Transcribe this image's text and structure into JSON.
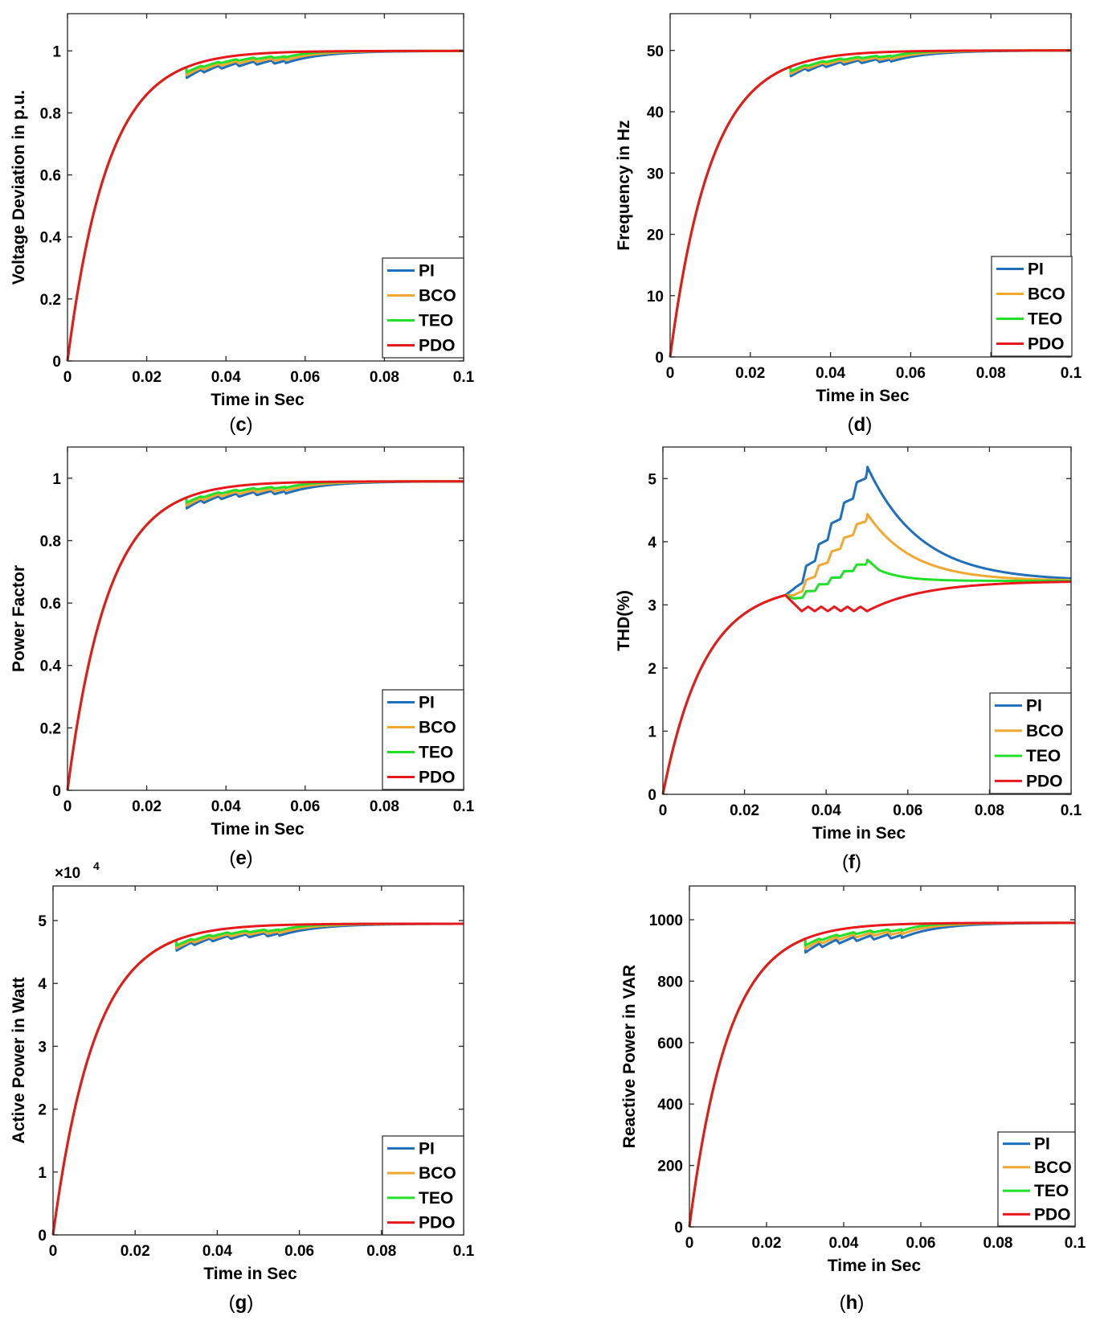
{
  "chart_data": [
    {
      "id": "c",
      "type": "line",
      "caption": "c",
      "xlabel": "Time in Sec",
      "ylabel": "Voltage Deviation in p.u.",
      "xlim": [
        0,
        0.1
      ],
      "ylim": [
        0,
        1.12
      ],
      "xticks": [
        "0",
        "0.02",
        "0.04",
        "0.06",
        "0.08",
        "0.1"
      ],
      "yticks": [
        "0",
        "0.2",
        "0.4",
        "0.6",
        "0.8",
        "1"
      ],
      "ytick_values": [
        0,
        0.2,
        0.4,
        0.6,
        0.8,
        1
      ],
      "legend_position": "bottom-right",
      "legend": [
        "PI",
        "BCO",
        "TEO",
        "PDO"
      ],
      "series_colors": [
        "#1f6fba",
        "#f0a830",
        "#22e02a",
        "#e8181c"
      ],
      "model": {
        "kind": "rise",
        "final": 1.0,
        "tau": 0.0102,
        "disturbance": {
          "start": 0.03,
          "end": 0.055,
          "depth": [
            0.035,
            0.026,
            0.017,
            0.0
          ],
          "ripple": 0.3,
          "settle_tau": [
            0.009,
            0.007,
            0.005,
            0.0
          ]
        }
      }
    },
    {
      "id": "d",
      "type": "line",
      "caption": "d",
      "xlabel": "Time in Sec",
      "ylabel": "Frequency in Hz",
      "xlim": [
        0,
        0.1
      ],
      "ylim": [
        0,
        56
      ],
      "xticks": [
        "0",
        "0.02",
        "0.04",
        "0.06",
        "0.08",
        "0.1"
      ],
      "yticks": [
        "0",
        "10",
        "20",
        "30",
        "40",
        "50"
      ],
      "ytick_values": [
        0,
        10,
        20,
        30,
        40,
        50
      ],
      "legend_position": "bottom-right",
      "legend": [
        "PI",
        "BCO",
        "TEO",
        "PDO"
      ],
      "series_colors": [
        "#1f6fba",
        "#f0a830",
        "#22e02a",
        "#e8181c"
      ],
      "model": {
        "kind": "rise",
        "final": 50,
        "tau": 0.0102,
        "disturbance": {
          "start": 0.03,
          "end": 0.055,
          "depth": [
            1.6,
            1.2,
            0.8,
            0.0
          ],
          "ripple": 0.3,
          "settle_tau": [
            0.009,
            0.007,
            0.005,
            0.0
          ]
        }
      }
    },
    {
      "id": "e",
      "type": "line",
      "caption": "e",
      "xlabel": "Time in Sec",
      "ylabel": "Power Factor",
      "xlim": [
        0,
        0.1
      ],
      "ylim": [
        0,
        1.1
      ],
      "xticks": [
        "0",
        "0.02",
        "0.04",
        "0.06",
        "0.08",
        "0.1"
      ],
      "yticks": [
        "0",
        "0.2",
        "0.4",
        "0.6",
        "0.8",
        "1"
      ],
      "ytick_values": [
        0,
        0.2,
        0.4,
        0.6,
        0.8,
        1
      ],
      "legend_position": "bottom-right",
      "legend": [
        "PI",
        "BCO",
        "TEO",
        "PDO"
      ],
      "series_colors": [
        "#1f6fba",
        "#f0a830",
        "#22e02a",
        "#e8181c"
      ],
      "model": {
        "kind": "rise",
        "final": 0.99,
        "tau": 0.0102,
        "disturbance": {
          "start": 0.03,
          "end": 0.055,
          "depth": [
            0.035,
            0.026,
            0.017,
            0.0
          ],
          "ripple": 0.3,
          "settle_tau": [
            0.009,
            0.007,
            0.005,
            0.0
          ]
        }
      }
    },
    {
      "id": "f",
      "type": "line",
      "caption": "f",
      "xlabel": "Time in Sec",
      "ylabel": "THD(%)",
      "xlim": [
        0,
        0.1
      ],
      "ylim": [
        0,
        5.5
      ],
      "xticks": [
        "0",
        "0.02",
        "0.04",
        "0.06",
        "0.08",
        "0.1"
      ],
      "yticks": [
        "0",
        "1",
        "2",
        "3",
        "4",
        "5"
      ],
      "ytick_values": [
        0,
        1,
        2,
        3,
        4,
        5
      ],
      "legend_position": "bottom-right",
      "legend": [
        "PI",
        "BCO",
        "TEO",
        "PDO"
      ],
      "series_colors": [
        "#1f6fba",
        "#f0a830",
        "#22e02a",
        "#e8181c"
      ],
      "model": {
        "kind": "thd",
        "final": 3.38,
        "tau": 0.0102,
        "break_x": 0.03,
        "peak_x": 0.05,
        "peaks": [
          5.2,
          4.45,
          3.72,
          2.95
        ],
        "dips": [
          3.25,
          3.15,
          3.1,
          2.9
        ],
        "ripple_amp": [
          0.18,
          0.12,
          0.08,
          0.06
        ],
        "decay_tau": [
          0.013,
          0.011,
          0.006,
          0.014
        ]
      }
    },
    {
      "id": "g",
      "type": "line",
      "caption": "g",
      "xlabel": "Time in Sec",
      "ylabel": "Active Power in Watt",
      "exponent_label": "×10",
      "exponent_value": "4",
      "xlim": [
        0,
        0.1
      ],
      "ylim": [
        0,
        5.55
      ],
      "xticks": [
        "0",
        "0.02",
        "0.04",
        "0.06",
        "0.08",
        "0.1"
      ],
      "yticks": [
        "0",
        "1",
        "2",
        "3",
        "4",
        "5"
      ],
      "ytick_values": [
        0,
        1,
        2,
        3,
        4,
        5
      ],
      "legend_position": "bottom-right",
      "legend": [
        "PI",
        "BCO",
        "TEO",
        "PDO"
      ],
      "series_colors": [
        "#1f6fba",
        "#f0a830",
        "#22e02a",
        "#e8181c"
      ],
      "model": {
        "kind": "rise",
        "final": 4.95,
        "tau": 0.0102,
        "disturbance": {
          "start": 0.03,
          "end": 0.055,
          "depth": [
            0.17,
            0.13,
            0.09,
            0.0
          ],
          "ripple": 0.3,
          "settle_tau": [
            0.009,
            0.007,
            0.005,
            0.0
          ]
        }
      }
    },
    {
      "id": "h",
      "type": "line",
      "caption": "h",
      "xlabel": "Time in Sec",
      "ylabel": "Reactive Power in VAR",
      "xlim": [
        0,
        0.1
      ],
      "ylim": [
        0,
        1110
      ],
      "xticks": [
        "0",
        "0.02",
        "0.04",
        "0.06",
        "0.08",
        "0.1"
      ],
      "yticks": [
        "0",
        "200",
        "400",
        "600",
        "800",
        "1000"
      ],
      "ytick_values": [
        0,
        200,
        400,
        600,
        800,
        1000
      ],
      "legend_position": "bottom-right",
      "legend": [
        "PI",
        "BCO",
        "TEO",
        "PDO"
      ],
      "series_colors": [
        "#1f6fba",
        "#f0a830",
        "#22e02a",
        "#e8181c"
      ],
      "model": {
        "kind": "rise",
        "final": 990,
        "tau": 0.0102,
        "disturbance": {
          "start": 0.03,
          "end": 0.055,
          "depth": [
            45,
            33,
            22,
            0.0
          ],
          "ripple": 0.3,
          "settle_tau": [
            0.009,
            0.007,
            0.005,
            0.0
          ]
        }
      }
    }
  ]
}
